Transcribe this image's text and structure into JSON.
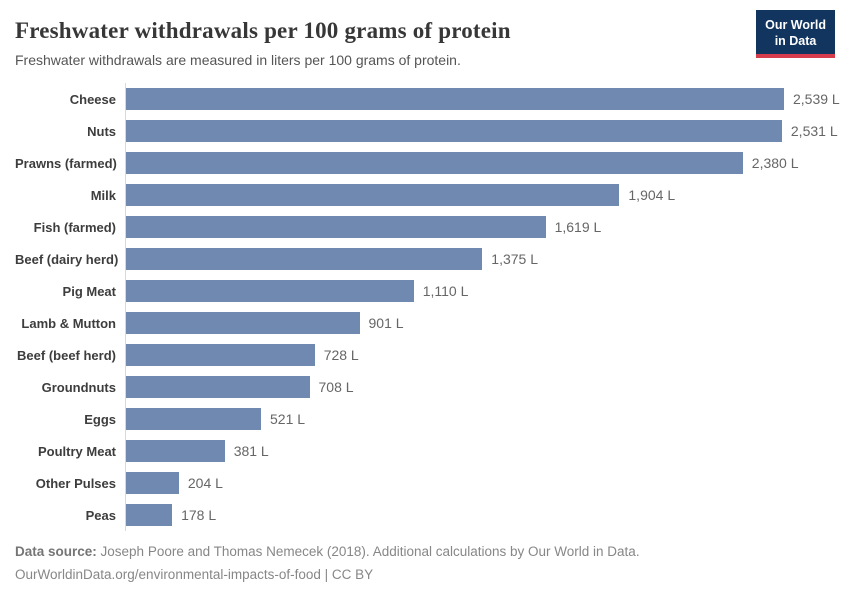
{
  "chart_data": {
    "type": "bar",
    "orientation": "horizontal",
    "title": "Freshwater withdrawals per 100 grams of protein",
    "subtitle": "Freshwater withdrawals are measured in liters per 100 grams of protein.",
    "unit": "liters per 100 grams of protein",
    "categories": [
      "Cheese",
      "Nuts",
      "Prawns (farmed)",
      "Milk",
      "Fish (farmed)",
      "Beef (dairy herd)",
      "Pig Meat",
      "Lamb & Mutton",
      "Beef (beef herd)",
      "Groundnuts",
      "Eggs",
      "Poultry Meat",
      "Other Pulses",
      "Peas"
    ],
    "values": [
      2539,
      2531,
      2380,
      1904,
      1619,
      1375,
      1110,
      901,
      728,
      708,
      521,
      381,
      204,
      178
    ],
    "value_labels": [
      "2,539 L",
      "2,531 L",
      "2,380 L",
      "1,904 L",
      "1,619 L",
      "1,375 L",
      "1,110 L",
      "901 L",
      "728 L",
      "708 L",
      "521 L",
      "381 L",
      "204 L",
      "178 L"
    ],
    "xlim": [
      0,
      2539
    ],
    "grid": false,
    "legend": "none",
    "bar_color": "#7089b0",
    "axis_line_color": "#d9d9d9"
  },
  "logo": {
    "line1": "Our World",
    "line2": "in Data",
    "bg_color": "#12355f",
    "accent_color": "#d73c4c"
  },
  "footer": {
    "source_label": "Data source:",
    "source_text": " Joseph Poore and Thomas Nemecek (2018). Additional calculations by Our World in Data.",
    "license_line": "OurWorldinData.org/environmental-impacts-of-food | CC BY"
  }
}
